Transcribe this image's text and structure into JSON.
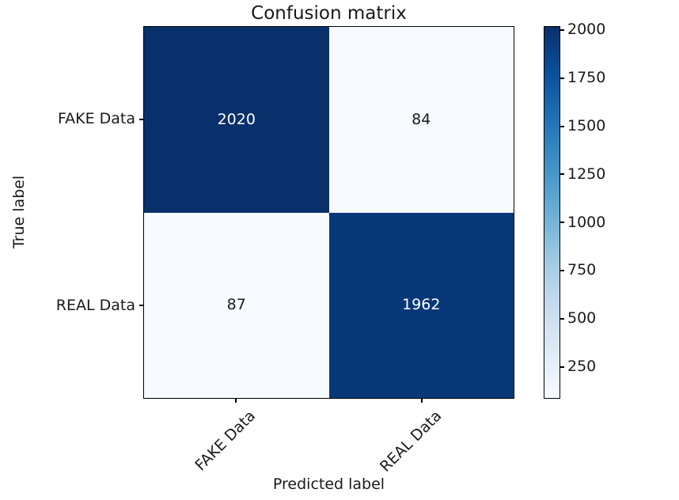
{
  "chart_data": {
    "type": "heatmap",
    "title": "Confusion matrix",
    "xlabel": "Predicted label",
    "ylabel": "True label",
    "x_tick_labels": [
      "FAKE Data",
      "REAL Data"
    ],
    "y_tick_labels": [
      "FAKE Data",
      "REAL Data"
    ],
    "matrix": [
      [
        2020,
        84
      ],
      [
        87,
        1962
      ]
    ],
    "grid": false,
    "colormap": {
      "name": "Blues",
      "stops": [
        "#f7fbff",
        "#deebf7",
        "#c6dbef",
        "#9ecae1",
        "#6baed6",
        "#4292c6",
        "#2171b5",
        "#08519c",
        "#08306b"
      ]
    },
    "colorbar": {
      "position": "right",
      "vmin": 84,
      "vmax": 2020,
      "ticks": [
        2000,
        1750,
        1500,
        1250,
        1000,
        750,
        500,
        250
      ]
    },
    "cell_text_colors": {
      "dark_cell": "#ffffff",
      "light_cell": "#1a1a1a"
    }
  }
}
